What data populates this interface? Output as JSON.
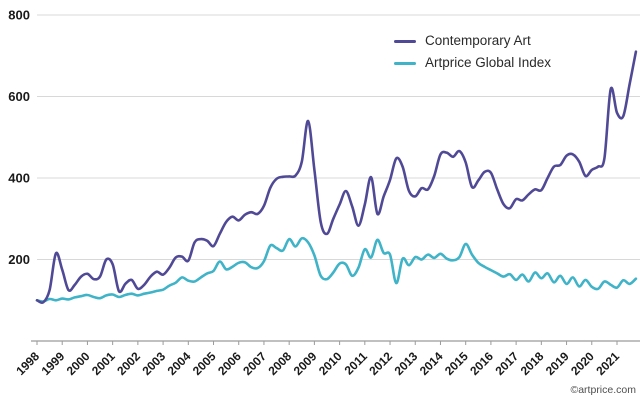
{
  "watermark": "©artprice.com",
  "chart_data": {
    "type": "line",
    "title": "",
    "xlabel": "",
    "ylabel": "",
    "x_start": 1998,
    "x_step": 0.25,
    "x_unit": "year (quarterly index points)",
    "x_ticks": [
      1998,
      1999,
      2000,
      2001,
      2002,
      2003,
      2004,
      2005,
      2006,
      2007,
      2008,
      2009,
      2010,
      2011,
      2012,
      2013,
      2014,
      2015,
      2016,
      2017,
      2018,
      2019,
      2020,
      2021
    ],
    "y_ticks": [
      200,
      400,
      600,
      800
    ],
    "ylim": [
      0,
      800
    ],
    "grid": "horizontal",
    "legend_position": "top-right",
    "series": [
      {
        "name": "Contemporary Art",
        "color": "#504A96",
        "values": [
          100,
          95,
          125,
          215,
          175,
          125,
          138,
          158,
          165,
          152,
          158,
          200,
          188,
          122,
          140,
          150,
          128,
          138,
          158,
          170,
          163,
          180,
          205,
          207,
          197,
          242,
          250,
          246,
          233,
          263,
          292,
          305,
          296,
          310,
          316,
          312,
          332,
          376,
          398,
          403,
          404,
          406,
          440,
          540,
          420,
          292,
          263,
          300,
          335,
          368,
          330,
          283,
          335,
          402,
          312,
          355,
          395,
          448,
          428,
          368,
          355,
          375,
          372,
          405,
          458,
          462,
          452,
          466,
          438,
          378,
          394,
          415,
          413,
          372,
          336,
          326,
          348,
          345,
          360,
          372,
          370,
          400,
          428,
          432,
          455,
          458,
          440,
          405,
          420,
          428,
          448,
          618,
          560,
          552,
          630,
          710
        ]
      },
      {
        "name": "Artprice Global Index",
        "color": "#3FB3C7",
        "values": [
          100,
          97,
          103,
          100,
          104,
          102,
          107,
          110,
          113,
          108,
          105,
          112,
          114,
          108,
          113,
          116,
          112,
          116,
          119,
          123,
          126,
          136,
          143,
          156,
          148,
          146,
          156,
          166,
          172,
          195,
          176,
          182,
          192,
          193,
          181,
          179,
          196,
          234,
          228,
          222,
          250,
          232,
          252,
          242,
          210,
          160,
          152,
          168,
          190,
          188,
          160,
          180,
          225,
          205,
          248,
          216,
          212,
          142,
          202,
          186,
          206,
          200,
          212,
          204,
          214,
          202,
          198,
          206,
          238,
          212,
          192,
          182,
          174,
          166,
          158,
          164,
          150,
          163,
          146,
          168,
          154,
          166,
          144,
          160,
          140,
          156,
          134,
          150,
          133,
          128,
          146,
          138,
          131,
          149,
          140,
          153
        ]
      }
    ]
  }
}
